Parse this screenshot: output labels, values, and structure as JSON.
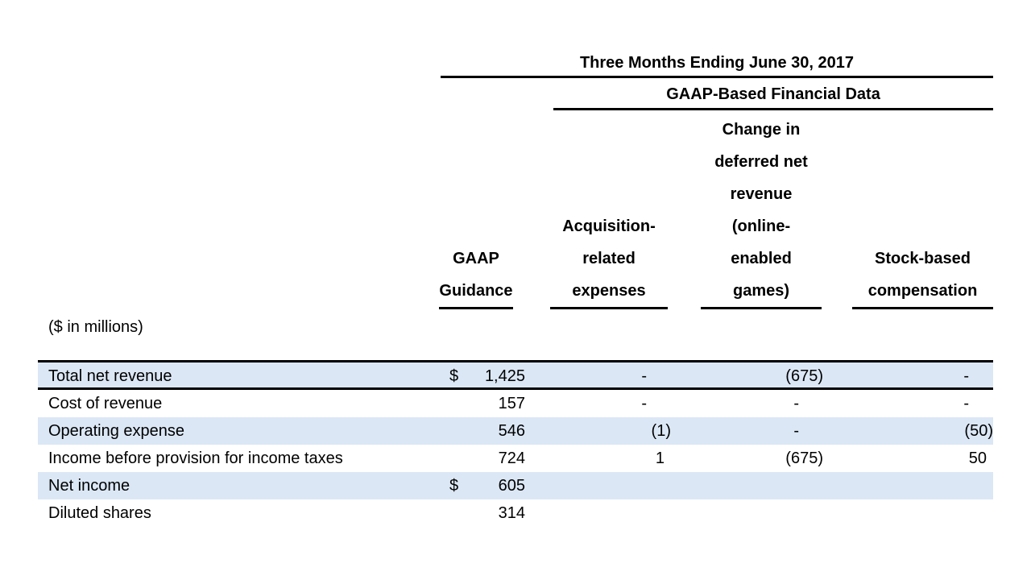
{
  "header": {
    "period_title": "Three Months Ending June 30, 2017",
    "group_title": "GAAP-Based Financial Data"
  },
  "columns": {
    "gaap": {
      "lines": [
        "GAAP",
        "Guidance"
      ]
    },
    "acq": {
      "lines": [
        "Acquisition-",
        "related",
        "expenses"
      ]
    },
    "deferred": {
      "lines": [
        "Change in",
        "deferred net",
        "revenue",
        "(online-",
        "enabled",
        "games)"
      ]
    },
    "sbc": {
      "lines": [
        "Stock-based",
        "compensation"
      ]
    }
  },
  "units_note": "($ in millions)",
  "table": {
    "rows": [
      {
        "label": "Total net revenue",
        "currency": "$",
        "gaap": "1,425",
        "acq": "-",
        "deferred": "(675)",
        "sbc": "-"
      },
      {
        "label": "Cost of revenue",
        "currency": "",
        "gaap": "157",
        "acq": "-",
        "deferred": "-",
        "sbc": "-"
      },
      {
        "label": "Operating expense",
        "currency": "",
        "gaap": "546",
        "acq": "(1)",
        "deferred": "-",
        "sbc": "(50)"
      },
      {
        "label": "Income before provision for income taxes",
        "currency": "",
        "gaap": "724",
        "acq": "1",
        "deferred": "(675)",
        "sbc": "50"
      },
      {
        "label": "Net income",
        "currency": "$",
        "gaap": "605",
        "acq": "",
        "deferred": "",
        "sbc": ""
      },
      {
        "label": "Diluted shares",
        "currency": "",
        "gaap": "314",
        "acq": "",
        "deferred": "",
        "sbc": ""
      }
    ]
  },
  "colors": {
    "row_shade": "#dbe7f5",
    "rule": "#000000",
    "text": "#000000"
  }
}
